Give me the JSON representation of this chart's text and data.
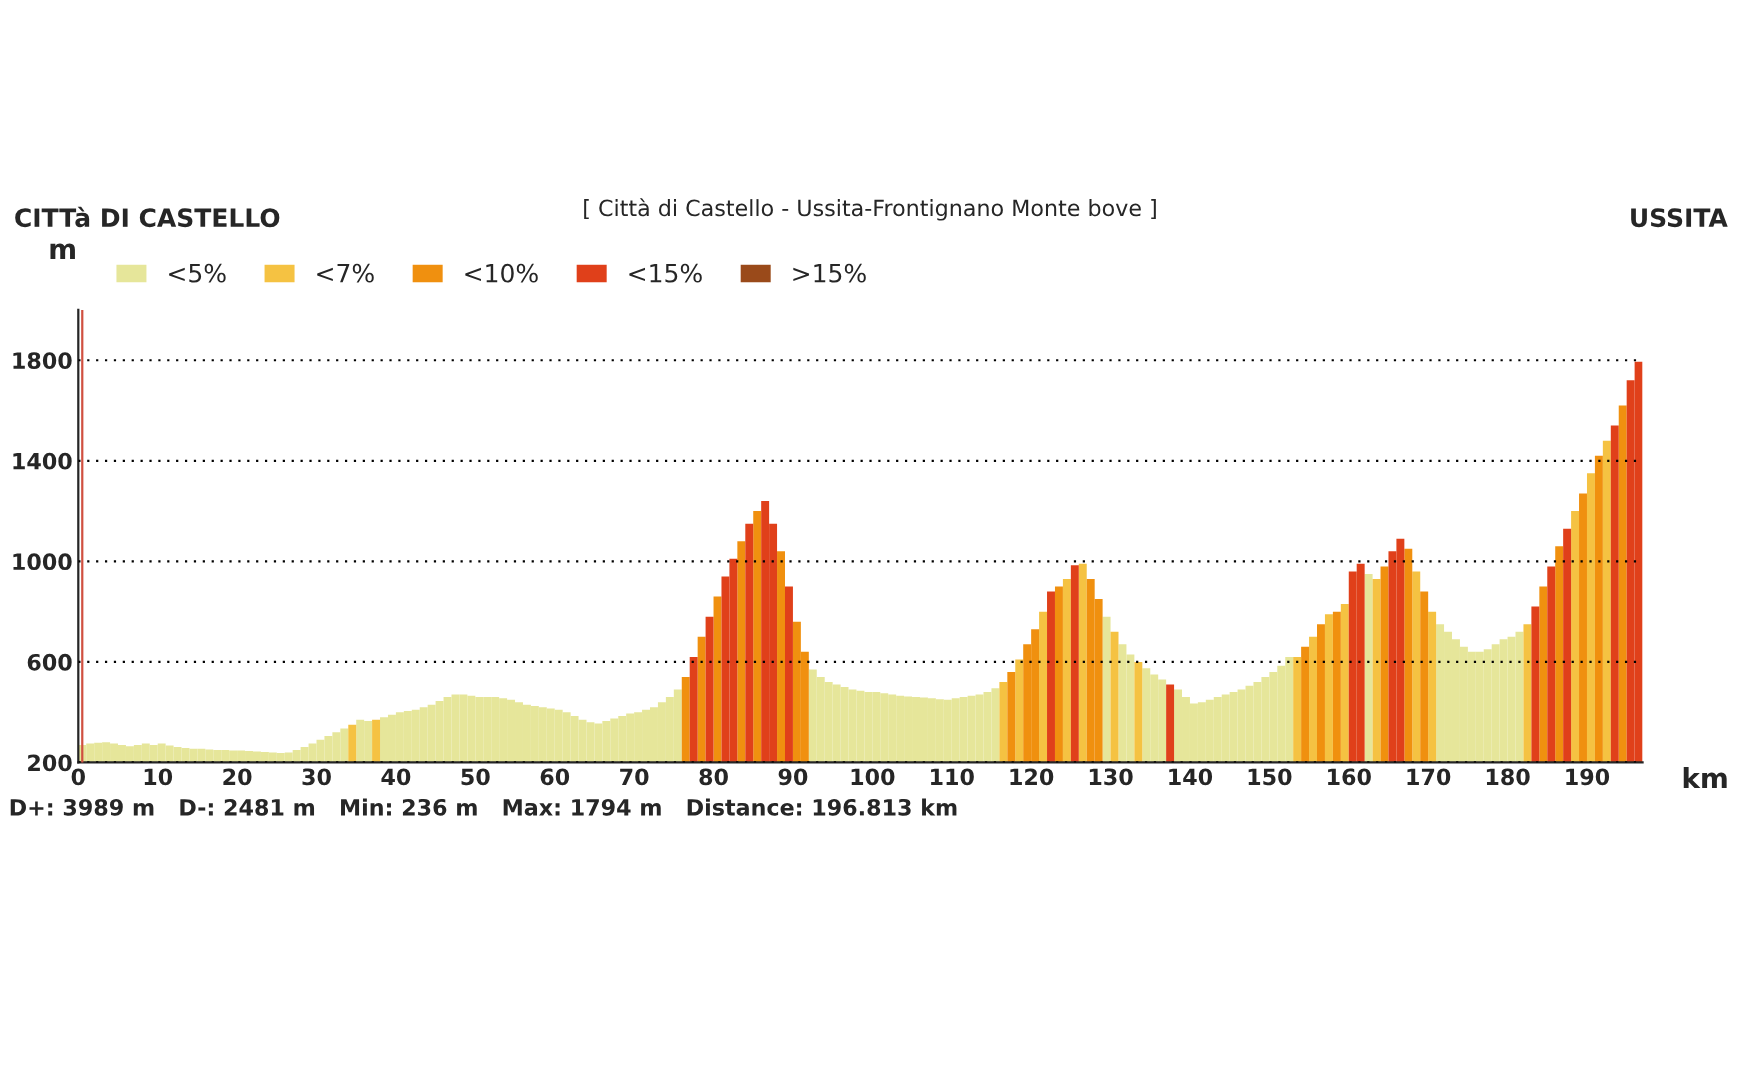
{
  "chart_data": {
    "type": "bar",
    "title": "[ Città di Castello - Ussita-Frontignano Monte bove ]",
    "xlabel": "km",
    "ylabel": "m",
    "annotations": [
      "CITTà DI CASTELLO",
      "USSITA",
      "D+: 3989 m   D-: 2481 m   Min: 236 m   Max: 1794 m   Distance: 196.813 km"
    ],
    "xlim": [
      0,
      197
    ],
    "ylim": [
      200,
      2000
    ],
    "xticks": [
      0,
      10,
      20,
      30,
      40,
      50,
      60,
      70,
      80,
      90,
      100,
      110,
      120,
      130,
      140,
      150,
      160,
      170,
      180,
      190
    ],
    "yticks": [
      200,
      600,
      1000,
      1400,
      1800
    ],
    "grid": "y",
    "legend": "top left",
    "ref_lines": [
      {
        "axis": "x",
        "value": 0.5,
        "color": "#d05040"
      }
    ],
    "series": [
      {
        "name": "<5%",
        "color": "#e6e69a",
        "x": [
          0,
          1,
          2,
          3,
          4,
          5,
          6,
          7,
          8,
          9,
          10,
          11,
          12,
          13,
          14,
          15,
          16,
          17,
          18,
          19,
          20,
          21,
          22,
          23,
          24,
          25,
          26,
          27,
          28,
          29,
          30,
          31,
          32,
          33,
          35,
          36,
          38,
          39,
          40,
          41,
          42,
          43,
          44,
          45,
          46,
          47,
          48,
          49,
          50,
          51,
          52,
          53,
          54,
          55,
          56,
          57,
          58,
          59,
          60,
          61,
          62,
          63,
          64,
          65,
          66,
          67,
          68,
          69,
          70,
          71,
          72,
          73,
          74,
          75,
          92,
          93,
          94,
          95,
          96,
          97,
          98,
          99,
          100,
          101,
          102,
          103,
          104,
          105,
          106,
          107,
          108,
          109,
          110,
          111,
          112,
          113,
          114,
          115,
          129,
          131,
          132,
          134,
          135,
          136,
          138,
          139,
          140,
          141,
          142,
          143,
          144,
          145,
          146,
          147,
          148,
          149,
          150,
          151,
          152,
          162,
          171,
          172,
          173,
          174,
          175,
          176,
          177,
          178,
          179,
          180,
          181
        ],
        "values": [
          270,
          275,
          278,
          280,
          275,
          270,
          265,
          270,
          275,
          270,
          275,
          268,
          262,
          258,
          255,
          255,
          252,
          250,
          250,
          248,
          248,
          246,
          244,
          242,
          240,
          238,
          240,
          250,
          262,
          275,
          290,
          305,
          320,
          335,
          370,
          365,
          380,
          390,
          400,
          405,
          410,
          420,
          430,
          445,
          460,
          470,
          470,
          465,
          460,
          460,
          460,
          455,
          450,
          440,
          430,
          425,
          420,
          415,
          410,
          400,
          385,
          370,
          360,
          355,
          365,
          375,
          385,
          395,
          400,
          410,
          420,
          440,
          460,
          490,
          570,
          540,
          520,
          510,
          500,
          490,
          485,
          480,
          480,
          475,
          470,
          465,
          462,
          460,
          458,
          455,
          452,
          450,
          455,
          460,
          465,
          470,
          480,
          495,
          780,
          670,
          630,
          575,
          550,
          530,
          490,
          460,
          435,
          440,
          450,
          460,
          470,
          480,
          490,
          505,
          520,
          540,
          560,
          585,
          620,
          950,
          750,
          720,
          690,
          660,
          640,
          640,
          650,
          670,
          690,
          700,
          720
        ]
      },
      {
        "name": "<7%",
        "color": "#f5c242",
        "x": [
          34,
          37,
          116,
          118,
          121,
          124,
          126,
          130,
          133,
          153,
          155,
          157,
          159,
          163,
          168,
          170,
          182,
          188,
          190,
          192
        ],
        "values": [
          350,
          370,
          520,
          610,
          800,
          930,
          990,
          720,
          600,
          620,
          700,
          790,
          830,
          930,
          960,
          800,
          750,
          1200,
          1350,
          1480
        ]
      },
      {
        "name": "<10%",
        "color": "#f0900f",
        "x": [
          76,
          78,
          80,
          83,
          85,
          88,
          90,
          91,
          117,
          119,
          120,
          123,
          127,
          128,
          154,
          156,
          158,
          164,
          167,
          169,
          184,
          186,
          189,
          191,
          194
        ],
        "values": [
          540,
          700,
          860,
          1080,
          1200,
          1040,
          760,
          640,
          560,
          670,
          730,
          900,
          930,
          850,
          660,
          750,
          800,
          980,
          1050,
          880,
          900,
          1060,
          1270,
          1420,
          1620
        ]
      },
      {
        "name": "<15%",
        "color": "#e0401a",
        "x": [
          77,
          79,
          81,
          82,
          84,
          86,
          87,
          89,
          122,
          125,
          137,
          160,
          161,
          165,
          166,
          183,
          185,
          187,
          193,
          195,
          196
        ],
        "values": [
          620,
          780,
          940,
          1010,
          1150,
          1240,
          1150,
          900,
          880,
          985,
          510,
          960,
          990,
          1040,
          1090,
          820,
          980,
          1130,
          1540,
          1720,
          1794
        ]
      },
      {
        "name": ">15%",
        "color": "#9a4a1a"
      }
    ]
  }
}
